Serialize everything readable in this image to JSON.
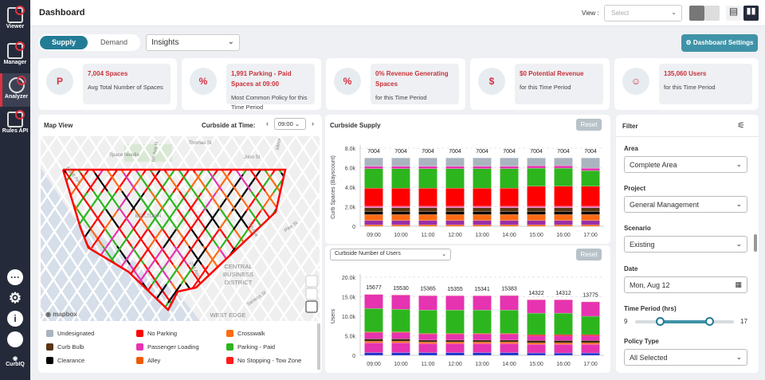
{
  "sidebar": {
    "items": [
      {
        "label": "Viewer"
      },
      {
        "label": "Manager"
      },
      {
        "label": "Analyzer",
        "active": true
      },
      {
        "label": "Rules API"
      }
    ],
    "logo": "CurbIQ",
    "bottom_icons": [
      "more-icon",
      "gear-icon",
      "info-icon",
      "user-icon"
    ]
  },
  "header": {
    "title": "Dashboard",
    "view_label": "View :",
    "view_placeholder": "Select"
  },
  "toolbar": {
    "supply": "Supply",
    "demand": "Demand",
    "insights": "Insights",
    "dashboard_settings": "Dashboard Settings"
  },
  "kpis": [
    {
      "value": "7,004 Spaces",
      "desc": "Avg Total Number of Spaces",
      "icon": "parking-icon"
    },
    {
      "value": "1,991 Parking - Paid Spaces at 09:00",
      "desc": "Most Common Policy for this Time Period",
      "icon": "policy-icon"
    },
    {
      "value": "0% Revenue Generating Spaces",
      "desc": "for this Time Period",
      "icon": "percent-icon"
    },
    {
      "value": "$0 Potential Revenue",
      "desc": "for this Time Period",
      "icon": "money-bag-icon"
    },
    {
      "value": "135,060 Users",
      "desc": "for this Time Period",
      "icon": "users-icon"
    }
  ],
  "map": {
    "title": "Map View",
    "time_label": "Curbside at Time:",
    "time": "09:00",
    "attribution": "mapbox",
    "labels": [
      "Thomas St",
      "Space Needle",
      "John St",
      "6th Ave N",
      "Minor",
      "Elliott Ave",
      "BELLTOWN",
      "7th Ave",
      "Pike St",
      "2nd Ave",
      "CENTRAL",
      "BUSINESS",
      "DISTRICT",
      "Seneca St",
      "WEST EDGE"
    ],
    "legend": [
      {
        "label": "Undesignated",
        "color": "#a9b4bf"
      },
      {
        "label": "No Parking",
        "color": "#ff0000"
      },
      {
        "label": "Crosswalk",
        "color": "#ff6a13"
      },
      {
        "label": "Curb Bulb",
        "color": "#5a3510"
      },
      {
        "label": "Passenger Loading",
        "color": "#e633b0"
      },
      {
        "label": "Parking - Paid",
        "color": "#2db51e"
      },
      {
        "label": "Clearance",
        "color": "#000000"
      },
      {
        "label": "Alley",
        "color": "#f05a00"
      },
      {
        "label": "No Stopping - Tow Zone",
        "color": "#ff1a1a"
      }
    ]
  },
  "supply_panel": {
    "title": "Curbside Supply",
    "reset": "Reset"
  },
  "users_panel": {
    "select": "Curbside Number of Users",
    "reset": "Reset"
  },
  "chart_data": [
    {
      "type": "bar",
      "stacked": true,
      "title": "",
      "ylabel": "Curb Spaces (Bayscount)",
      "ylim": [
        0,
        8000
      ],
      "yticks": [
        "0",
        "2.0k",
        "4.0k",
        "6.0k",
        "8.0k"
      ],
      "grid": true,
      "categories": [
        "09:00",
        "10:00",
        "11:00",
        "12:00",
        "13:00",
        "14:00",
        "15:00",
        "16:00",
        "17:00"
      ],
      "totals": [
        7004,
        7004,
        7004,
        7004,
        7004,
        7004,
        7004,
        7004,
        7004
      ],
      "series": [
        {
          "name": "Alley",
          "color": "#f05a00",
          "values": [
            150,
            150,
            150,
            150,
            150,
            150,
            150,
            150,
            150
          ]
        },
        {
          "color": "#9a2fa8",
          "values": [
            450,
            450,
            450,
            450,
            450,
            450,
            450,
            450,
            450
          ]
        },
        {
          "name": "Crosswalk",
          "color": "#ff6a13",
          "values": [
            600,
            600,
            600,
            600,
            600,
            600,
            600,
            600,
            600
          ]
        },
        {
          "name": "Clearance",
          "color": "#000000",
          "values": [
            300,
            300,
            300,
            300,
            300,
            300,
            300,
            300,
            300
          ]
        },
        {
          "name": "Curb Bulb",
          "color": "#5a3510",
          "values": [
            400,
            400,
            400,
            400,
            400,
            400,
            400,
            400,
            400
          ]
        },
        {
          "name": "No Stopping - Tow Zone",
          "color": "#f060b0",
          "values": [
            150,
            150,
            150,
            150,
            150,
            150,
            150,
            150,
            150
          ]
        },
        {
          "name": "No Parking",
          "color": "#ff0000",
          "values": [
            1850,
            1850,
            1850,
            1850,
            1850,
            1850,
            2050,
            2050,
            2050
          ]
        },
        {
          "name": "Parking - Paid",
          "color": "#2db51e",
          "values": [
            2000,
            2000,
            2000,
            2000,
            2000,
            2000,
            1850,
            1850,
            1600
          ]
        },
        {
          "name": "Passenger Loading",
          "color": "#e633b0",
          "values": [
            250,
            250,
            250,
            250,
            250,
            250,
            250,
            250,
            250
          ]
        },
        {
          "name": "Undesignated",
          "color": "#aab4bf",
          "values": [
            854,
            854,
            854,
            854,
            854,
            854,
            804,
            804,
            1054
          ]
        }
      ]
    },
    {
      "type": "bar",
      "stacked": true,
      "title": "",
      "ylabel": "Users",
      "ylim": [
        0,
        20000
      ],
      "yticks": [
        "0",
        "5.0k",
        "10.0k",
        "15.0k",
        "20.0k"
      ],
      "grid": true,
      "categories": [
        "09:00",
        "10:00",
        "11:00",
        "12:00",
        "13:00",
        "14:00",
        "15:00",
        "16:00",
        "17:00"
      ],
      "totals": [
        15677,
        15530,
        15365,
        15355,
        15341,
        15383,
        14322,
        14312,
        13775
      ],
      "series": [
        {
          "color": "#2233cc",
          "values": [
            700,
            700,
            700,
            700,
            700,
            700,
            600,
            600,
            600
          ]
        },
        {
          "color": "#e633b0",
          "values": [
            2500,
            2500,
            2300,
            2300,
            2300,
            2300,
            2200,
            2200,
            2200
          ]
        },
        {
          "color": "#ff6a13",
          "values": [
            400,
            400,
            400,
            400,
            400,
            400,
            400,
            400,
            400
          ]
        },
        {
          "color": "#3a2510",
          "values": [
            600,
            600,
            500,
            500,
            500,
            500,
            600,
            600,
            600
          ]
        },
        {
          "color": "#e633b0",
          "values": [
            1600,
            1600,
            1500,
            1500,
            1500,
            1500,
            1200,
            1200,
            1200
          ]
        },
        {
          "color": "#ff0000",
          "values": [
            200,
            200,
            200,
            200,
            200,
            200,
            300,
            300,
            300
          ]
        },
        {
          "color": "#2db51e",
          "values": [
            6000,
            5800,
            6000,
            6000,
            6000,
            6000,
            5500,
            5500,
            4700
          ]
        },
        {
          "color": "#e633b0",
          "values": [
            3597,
            3650,
            3685,
            3675,
            3661,
            3703,
            3442,
            3432,
            3695
          ]
        },
        {
          "color": "#ffb060",
          "values": [
            80,
            80,
            80,
            80,
            80,
            80,
            80,
            80,
            80
          ]
        }
      ]
    }
  ],
  "filter": {
    "title": "Filter",
    "area_label": "Area",
    "area": "Complete Area",
    "project_label": "Project",
    "project": "General Management",
    "scenario_label": "Scenario",
    "scenario": "Existing",
    "date_label": "Date",
    "date": "Mon, Aug 12",
    "time_label": "Time Period (hrs)",
    "time_min": "9",
    "time_max": "17",
    "range": [
      11,
      15
    ],
    "policy_label": "Policy Type",
    "policy": "All Selected"
  }
}
